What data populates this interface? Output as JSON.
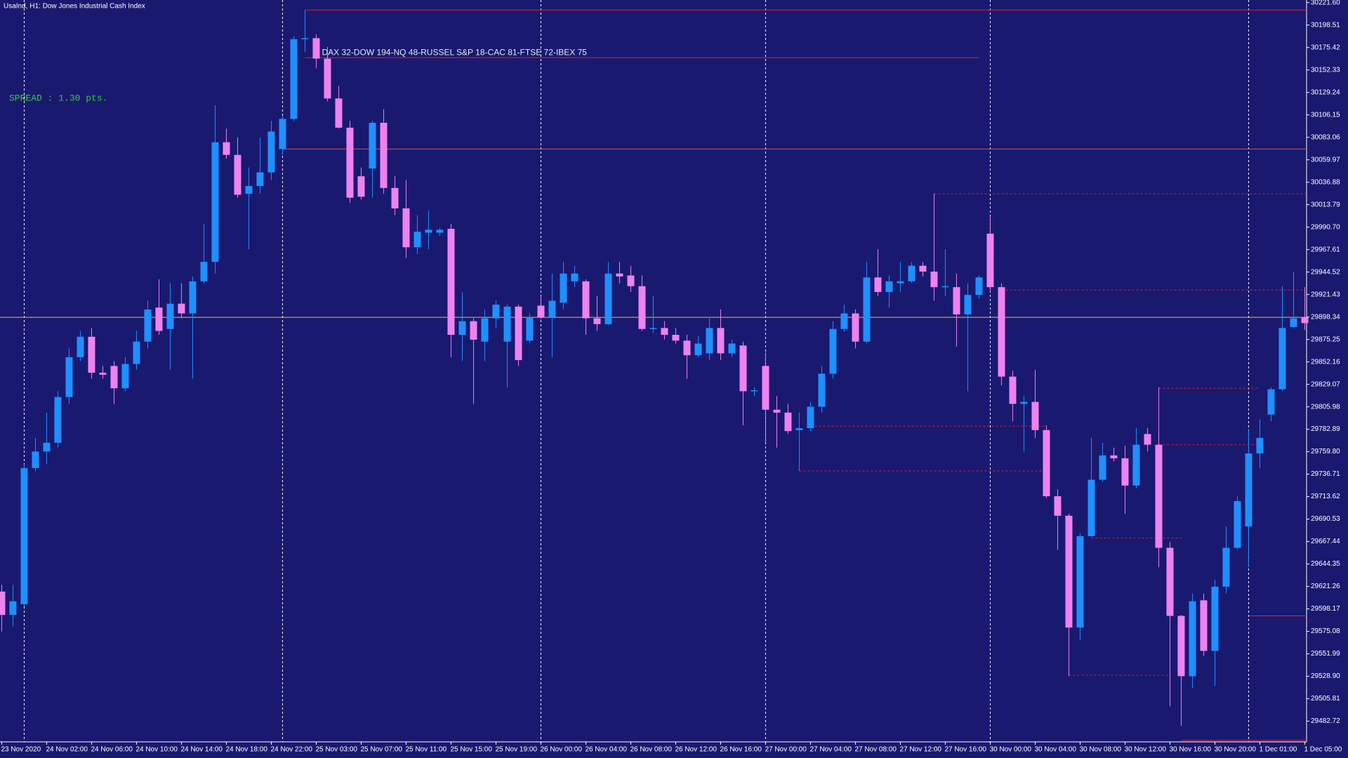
{
  "chart_data": {
    "type": "candlestick",
    "title": "UsaInd, H1:  Dow Jones Industrial Cash Index",
    "spread_text": "SPREAD : 1.30 pts.",
    "up_color": "#1e90ff",
    "down_color": "#ee82ee",
    "categories": [
      "23 Nov 2020",
      null,
      null,
      null,
      "24 Nov 02:00",
      null,
      null,
      null,
      "24 Nov 06:00",
      null,
      null,
      null,
      "24 Nov 10:00",
      null,
      null,
      null,
      "24 Nov 14:00",
      null,
      null,
      null,
      "24 Nov 18:00",
      null,
      null,
      null,
      "24 Nov 22:00",
      null,
      null,
      null,
      "25 Nov 03:00",
      null,
      null,
      null,
      "25 Nov 07:00",
      null,
      null,
      null,
      "25 Nov 11:00",
      null,
      null,
      null,
      "25 Nov 15:00",
      null,
      null,
      null,
      "25 Nov 19:00",
      null,
      null,
      null,
      "26 Nov 00:00",
      null,
      null,
      null,
      "26 Nov 04:00",
      null,
      null,
      null,
      "26 Nov 08:00",
      null,
      null,
      null,
      "26 Nov 12:00",
      null,
      null,
      null,
      "26 Nov 16:00",
      null,
      null,
      null,
      "27 Nov 00:00",
      null,
      null,
      null,
      "27 Nov 04:00",
      null,
      null,
      null,
      "27 Nov 08:00",
      null,
      null,
      null,
      "27 Nov 12:00",
      null,
      null,
      null,
      "27 Nov 16:00",
      null,
      null,
      null,
      "30 Nov 00:00",
      null,
      null,
      null,
      "30 Nov 04:00",
      null,
      null,
      null,
      "30 Nov 08:00",
      null,
      null,
      null,
      "30 Nov 12:00",
      null,
      null,
      null,
      "30 Nov 16:00",
      null,
      null,
      null,
      "30 Nov 20:00",
      null,
      null,
      null,
      "1 Dec 01:00",
      null,
      null,
      null,
      "1 Dec 05:00"
    ],
    "open": [
      29616,
      29592,
      29603,
      29743,
      29760,
      29769,
      29816,
      29857,
      29878,
      29841,
      29848,
      29825,
      29850,
      29873,
      29908,
      29886,
      29912,
      29902,
      29935,
      29955,
      30078,
      30065,
      30025,
      30033,
      30047,
      30071,
      30102,
      30184,
      30185,
      30164,
      30123,
      30093,
      30043,
      30051,
      30098,
      30031,
      30010,
      29970,
      29985,
      29985,
      29989,
      29880,
      29894,
      29873,
      29897,
      29873,
      29909,
      29874,
      29910,
      29898,
      29913,
      29935,
      29935,
      29897,
      29891,
      29943,
      29941,
      29930,
      29886,
      29887,
      29880,
      29874,
      29859,
      29861,
      29887,
      29861,
      29869,
      29822,
      29848,
      29803,
      29800,
      29782,
      29784,
      29806,
      29840,
      29886,
      29902,
      29873,
      29939,
      29924,
      29933,
      29935,
      29951,
      29945,
      29929,
      29929,
      29901,
      29921,
      29984,
      29929,
      29837,
      29809,
      29811,
      29782,
      29714,
      29694,
      29579,
      29673,
      29731,
      29756,
      29753,
      29725,
      29778,
      29767,
      29661,
      29591,
      29529,
      29607,
      29555,
      29621,
      29661,
      29683,
      29758,
      29798,
      29824,
      29888,
      29898
    ],
    "high": [
      29623,
      29623,
      29747,
      29774,
      29800,
      29822,
      29866,
      29884,
      29887,
      29848,
      29853,
      29857,
      29884,
      29915,
      29937,
      29933,
      29933,
      29940,
      29994,
      30116,
      30092,
      30083,
      30052,
      30083,
      30100,
      30105,
      30187,
      30214,
      30189,
      30176,
      30136,
      30100,
      30052,
      30100,
      30112,
      30043,
      30039,
      30003,
      30008,
      29990,
      29994,
      29924,
      29897,
      29906,
      29915,
      29911,
      29911,
      29902,
      29920,
      29943,
      29955,
      29951,
      29937,
      29920,
      29955,
      29955,
      29951,
      29941,
      29920,
      29894,
      29887,
      29880,
      29879,
      29897,
      29906,
      29875,
      29873,
      29826,
      29862,
      29817,
      29809,
      29800,
      29811,
      29848,
      29894,
      29911,
      29906,
      29955,
      29968,
      29941,
      29955,
      29955,
      29955,
      30025,
      29968,
      29943,
      29933,
      29941,
      30002,
      29933,
      29843,
      29817,
      29844,
      29787,
      29721,
      29696,
      29676,
      29774,
      29769,
      29764,
      29766,
      29784,
      29784,
      29826,
      29667,
      29592,
      29614,
      29614,
      29628,
      29683,
      29714,
      29782,
      29793,
      29826,
      29930,
      29945,
      29929
    ],
    "low": [
      29575,
      29580,
      29601,
      29740,
      29747,
      29764,
      29809,
      29853,
      29835,
      29835,
      29809,
      29822,
      29844,
      29866,
      29880,
      29844,
      29897,
      29835,
      29933,
      29943,
      30061,
      30021,
      29968,
      30025,
      30039,
      30065,
      30100,
      30171,
      30154,
      30120,
      30092,
      30016,
      30019,
      30021,
      30025,
      30003,
      29959,
      29963,
      29968,
      29982,
      29857,
      29853,
      29809,
      29853,
      29887,
      29826,
      29848,
      29871,
      29896,
      29857,
      29906,
      29929,
      29880,
      29884,
      29890,
      29933,
      29924,
      29884,
      29882,
      29875,
      29871,
      29835,
      29857,
      29854,
      29854,
      29857,
      29787,
      29817,
      29769,
      29764,
      29778,
      29740,
      29781,
      29800,
      29835,
      29883,
      29866,
      29871,
      29920,
      29908,
      29924,
      29933,
      29940,
      29915,
      29920,
      29868,
      29822,
      29917,
      29924,
      29828,
      29791,
      29760,
      29774,
      29712,
      29659,
      29529,
      29566,
      29672,
      29729,
      29750,
      29696,
      29722,
      29760,
      29641,
      29498,
      29478,
      29517,
      29550,
      29519,
      29614,
      29659,
      29641,
      29743,
      29791,
      29822,
      29887,
      29885
    ],
    "close": [
      29592,
      29606,
      29743,
      29760,
      29769,
      29816,
      29857,
      29878,
      29841,
      29839,
      29825,
      29850,
      29873,
      29906,
      29884,
      29912,
      29902,
      29935,
      29955,
      30078,
      30065,
      30024,
      30033,
      30047,
      30089,
      30102,
      30184,
      30185,
      30164,
      30123,
      30093,
      30021,
      30022,
      30098,
      30031,
      30010,
      29970,
      29986,
      29988,
      29988,
      29880,
      29894,
      29875,
      29897,
      29911,
      29909,
      29854,
      29898,
      29898,
      29915,
      29943,
      29943,
      29897,
      29891,
      29943,
      29940,
      29930,
      29886,
      29887,
      29880,
      29874,
      29859,
      29871,
      29887,
      29861,
      29871,
      29822,
      29823,
      29803,
      29800,
      29781,
      29784,
      29806,
      29840,
      29886,
      29902,
      29873,
      29939,
      29924,
      29935,
      29935,
      29951,
      29945,
      29929,
      29930,
      29901,
      29921,
      29939,
      29929,
      29837,
      29809,
      29811,
      29782,
      29714,
      29694,
      29579,
      29673,
      29731,
      29756,
      29753,
      29725,
      29767,
      29767,
      29661,
      29591,
      29529,
      29606,
      29555,
      29621,
      29661,
      29709,
      29758,
      29774,
      29824,
      29887,
      29897,
      29892
    ],
    "ylim": [
      29462.2,
      30224.25
    ],
    "yticks": [
      {
        "value": 30221.6,
        "label": "30221.60"
      },
      30198.51,
      30175.42,
      30152.33,
      30129.24,
      30106.15,
      30083.06,
      30059.97,
      30036.88,
      30013.79,
      {
        "value": 29990.7,
        "label": "29990.70"
      },
      29967.61,
      29944.52,
      29921.43,
      29898.34,
      29875.25,
      29852.16,
      29829.07,
      29805.98,
      29782.89,
      {
        "value": 29759.8,
        "label": "29759.80"
      },
      29736.71,
      29713.62,
      29690.53,
      29667.44,
      29644.35,
      29621.26,
      29598.17,
      29575.08,
      29551.99,
      {
        "value": 29528.9,
        "label": "29528.90"
      },
      29505.81,
      29482.72
    ],
    "levels": [
      {
        "value": 30214,
        "color": "#d8242e",
        "style": "solid"
      },
      {
        "value": 30165,
        "color": "#d8242e",
        "style": "solid",
        "label": "DAX 32-DOW 194-NQ 48-RUSSEL S&P 18-CAC 81-FTSE 72-IBEX 75"
      },
      {
        "value": 30071,
        "color": "#e2502c",
        "style": "solid"
      },
      {
        "value": 30025,
        "color": "#d8242e",
        "style": "dashed"
      },
      {
        "value": 29926,
        "color": "#d8242e",
        "style": "dashed"
      },
      {
        "value": 29898,
        "color": "#e6c619",
        "style": "solid"
      },
      {
        "value": 29825,
        "color": "#d8242e",
        "style": "dashed"
      },
      {
        "value": 29786,
        "color": "#d8242e",
        "style": "dashed"
      },
      {
        "value": 29767,
        "color": "#d8242e",
        "style": "dashed"
      },
      {
        "value": 29740,
        "color": "#d8242e",
        "style": "dashed"
      },
      {
        "value": 29671,
        "color": "#d8242e",
        "style": "dashed"
      },
      {
        "value": 29591,
        "color": "#d8242e",
        "style": "solid"
      },
      {
        "value": 29530,
        "color": "#d8242e",
        "style": "dashed"
      },
      {
        "value": 29463,
        "color": "#d8242e",
        "style": "solid"
      }
    ]
  }
}
